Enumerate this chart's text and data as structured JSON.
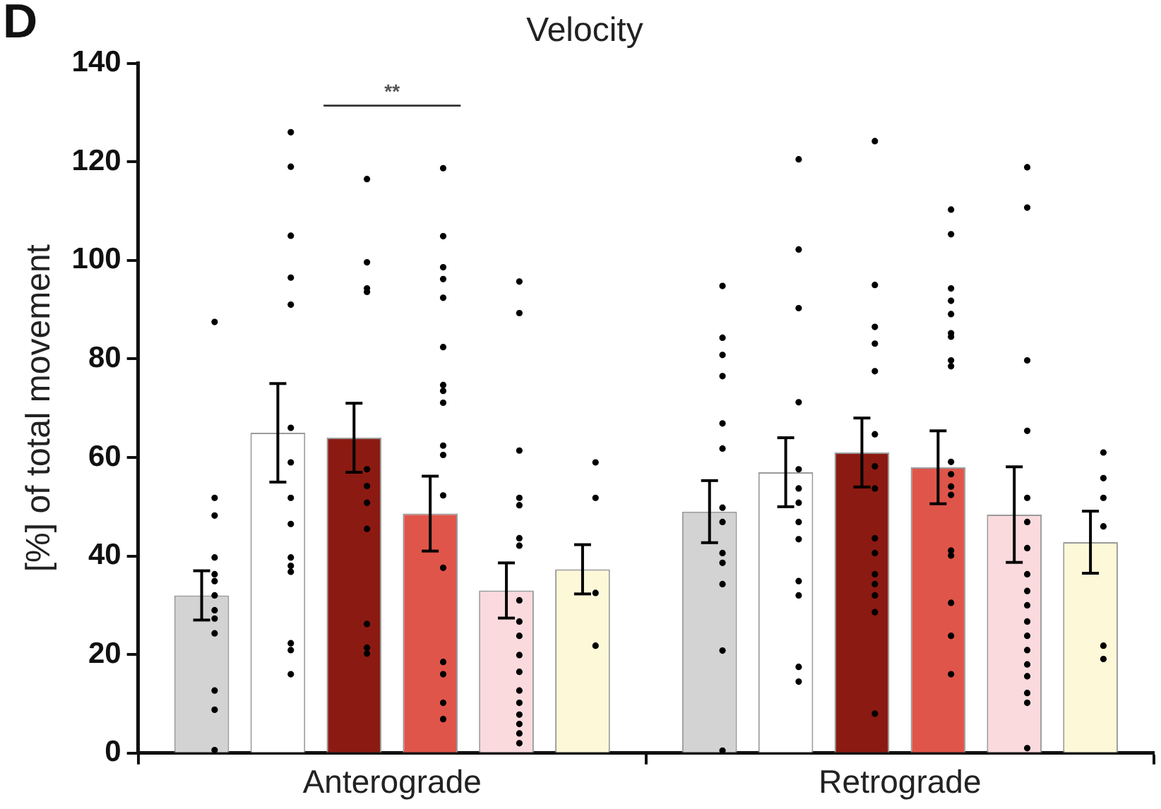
{
  "chart_data": {
    "type": "bar",
    "title": "Velocity",
    "ylabel": "[%] of total movement",
    "categories": [
      "Anterograde",
      "Retrograde"
    ],
    "ylim": [
      0,
      140
    ],
    "yticks": [
      0,
      20,
      40,
      60,
      80,
      100,
      120,
      140
    ],
    "grid": false,
    "legend": false,
    "annotations": [
      "D",
      "**"
    ],
    "series": [
      {
        "type": "bar",
        "color": "#d3d3d3",
        "values": [
          32,
          49
        ],
        "errors": [
          5,
          6.3
        ]
      },
      {
        "type": "bar",
        "color": "#ffffff",
        "values": [
          65,
          57
        ],
        "errors": [
          10,
          7
        ]
      },
      {
        "type": "bar",
        "color": "#8b1a12",
        "values": [
          64,
          61
        ],
        "errors": [
          7,
          7
        ]
      },
      {
        "type": "bar",
        "color": "#e0554a",
        "values": [
          48.6,
          58
        ],
        "errors": [
          7.6,
          7.4
        ]
      },
      {
        "type": "bar",
        "color": "#fadadd",
        "values": [
          33,
          48.4
        ],
        "errors": [
          5.6,
          9.7
        ]
      },
      {
        "type": "bar",
        "color": "#fdf8d8",
        "values": [
          37.3,
          42.8
        ],
        "errors": [
          5,
          6.3
        ]
      },
      {
        "type": "scatter",
        "color": "#000000",
        "x": [
          "Anterograde",
          "Anterograde",
          "Anterograde",
          "Anterograde",
          "Anterograde",
          "Anterograde",
          "Anterograde",
          "Anterograde",
          "Anterograde",
          "Anterograde",
          "Anterograde",
          "Anterograde",
          "Anterograde",
          "Retrograde",
          "Retrograde",
          "Retrograde",
          "Retrograde",
          "Retrograde",
          "Retrograde",
          "Retrograde",
          "Retrograde",
          "Retrograde",
          "Retrograde",
          "Retrograde",
          "Retrograde",
          "Retrograde"
        ],
        "values": [
          87.5,
          51.8,
          48.2,
          39.7,
          36.3,
          34.9,
          32,
          29,
          27.3,
          24.3,
          12.7,
          8.8,
          0.6,
          94.8,
          84.3,
          80.8,
          76.5,
          66.9,
          61.8,
          49.8,
          46.9,
          40.6,
          38.6,
          34.3,
          20.8,
          0.5
        ]
      },
      {
        "type": "scatter",
        "color": "#000000",
        "x": [
          "Anterograde",
          "Anterograde",
          "Anterograde",
          "Anterograde",
          "Anterograde",
          "Anterograde",
          "Anterograde",
          "Anterograde",
          "Anterograde",
          "Anterograde",
          "Anterograde",
          "Anterograde",
          "Anterograde",
          "Anterograde",
          "Anterograde",
          "Retrograde",
          "Retrograde",
          "Retrograde",
          "Retrograde",
          "Retrograde",
          "Retrograde",
          "Retrograde",
          "Retrograde",
          "Retrograde",
          "Retrograde",
          "Retrograde",
          "Retrograde",
          "Retrograde"
        ],
        "values": [
          126,
          119,
          105,
          96.5,
          91,
          66,
          59,
          51.8,
          46.5,
          39.7,
          38,
          36.8,
          22.3,
          20.9,
          16,
          120.5,
          102.2,
          90.3,
          71.2,
          57.6,
          53.7,
          50.8,
          46.9,
          43.4,
          34.9,
          32,
          17.5,
          14.5
        ]
      },
      {
        "type": "scatter",
        "color": "#000000",
        "x": [
          "Anterograde",
          "Anterograde",
          "Anterograde",
          "Anterograde",
          "Anterograde",
          "Anterograde",
          "Anterograde",
          "Anterograde",
          "Anterograde",
          "Anterograde",
          "Anterograde",
          "Retrograde",
          "Retrograde",
          "Retrograde",
          "Retrograde",
          "Retrograde",
          "Retrograde",
          "Retrograde",
          "Retrograde",
          "Retrograde",
          "Retrograde",
          "Retrograde",
          "Retrograde",
          "Retrograde",
          "Retrograde",
          "Retrograde"
        ],
        "values": [
          116.5,
          99.6,
          94.3,
          93.6,
          57.6,
          54.2,
          50.8,
          45.5,
          26.2,
          21.4,
          20.2,
          124.2,
          95,
          86.5,
          83.1,
          77.5,
          64.7,
          58.2,
          53.7,
          43.6,
          40.6,
          36.3,
          34.3,
          32,
          28.6,
          8
        ]
      },
      {
        "type": "scatter",
        "color": "#000000",
        "x": [
          "Anterograde",
          "Anterograde",
          "Anterograde",
          "Anterograde",
          "Anterograde",
          "Anterograde",
          "Anterograde",
          "Anterograde",
          "Anterograde",
          "Anterograde",
          "Anterograde",
          "Anterograde",
          "Anterograde",
          "Anterograde",
          "Anterograde",
          "Anterograde",
          "Anterograde",
          "Retrograde",
          "Retrograde",
          "Retrograde",
          "Retrograde",
          "Retrograde",
          "Retrograde",
          "Retrograde",
          "Retrograde",
          "Retrograde",
          "Retrograde",
          "Retrograde",
          "Retrograde",
          "Retrograde",
          "Retrograde",
          "Retrograde",
          "Retrograde",
          "Retrograde",
          "Retrograde"
        ],
        "values": [
          118.7,
          104.9,
          98.6,
          96.2,
          92.4,
          82.4,
          74.7,
          73.5,
          71.1,
          62.4,
          60.5,
          52.3,
          37.6,
          18.5,
          16,
          10.2,
          6.9,
          110.3,
          105.3,
          94.3,
          91.8,
          89.1,
          85.2,
          84.5,
          79.7,
          78.5,
          59.1,
          56.6,
          54.1,
          52.4,
          41.1,
          40.1,
          30.5,
          23.8,
          16
        ]
      },
      {
        "type": "scatter",
        "color": "#000000",
        "x": [
          "Anterograde",
          "Anterograde",
          "Anterograde",
          "Anterograde",
          "Anterograde",
          "Anterograde",
          "Anterograde",
          "Anterograde",
          "Anterograde",
          "Anterograde",
          "Anterograde",
          "Anterograde",
          "Anterograde",
          "Anterograde",
          "Anterograde",
          "Anterograde",
          "Anterograde",
          "Anterograde",
          "Retrograde",
          "Retrograde",
          "Retrograde",
          "Retrograde",
          "Retrograde",
          "Retrograde",
          "Retrograde",
          "Retrograde",
          "Retrograde",
          "Retrograde",
          "Retrograde",
          "Retrograde",
          "Retrograde",
          "Retrograde",
          "Retrograde",
          "Retrograde",
          "Retrograde",
          "Retrograde"
        ],
        "values": [
          95.7,
          89.3,
          61.4,
          51.8,
          50.3,
          43.6,
          42.1,
          31,
          26.7,
          23.8,
          19.9,
          16.5,
          12.7,
          10.2,
          7.8,
          5.9,
          4,
          2,
          118.9,
          110.7,
          79.7,
          65.4,
          51.8,
          46.9,
          41.6,
          36.3,
          32.9,
          30,
          26.7,
          23.8,
          20.9,
          18,
          15.6,
          12.2,
          10.2,
          1
        ]
      },
      {
        "type": "scatter",
        "color": "#000000",
        "x": [
          "Anterograde",
          "Anterograde",
          "Anterograde",
          "Anterograde",
          "Retrograde",
          "Retrograde",
          "Retrograde",
          "Retrograde",
          "Retrograde",
          "Retrograde"
        ],
        "values": [
          59,
          51.8,
          32.5,
          21.8,
          61,
          55.8,
          51.8,
          46,
          21.8,
          19.1
        ]
      }
    ]
  }
}
